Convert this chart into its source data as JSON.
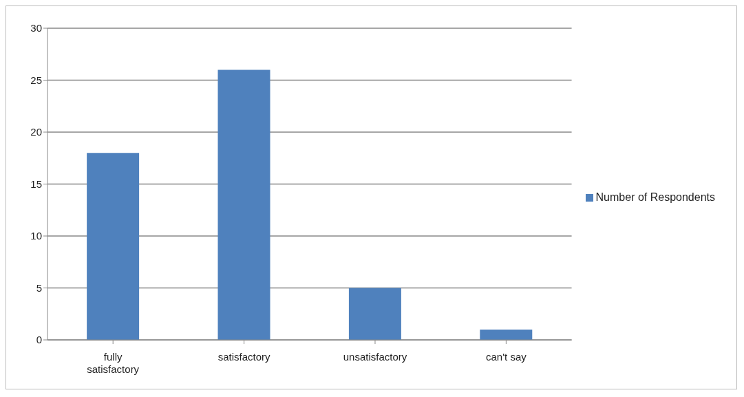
{
  "chart_data": {
    "type": "bar",
    "categories": [
      "fully satisfactory",
      "satisfactory",
      "unsatisfactory",
      "can't say"
    ],
    "series": [
      {
        "name": "Number of Respondents",
        "color": "#4f81bd",
        "values": [
          18,
          26,
          5,
          1
        ]
      }
    ],
    "ylim": [
      0,
      30
    ],
    "yticks": [
      0,
      5,
      10,
      15,
      20,
      25,
      30
    ],
    "grid": "y",
    "legend": "right"
  }
}
